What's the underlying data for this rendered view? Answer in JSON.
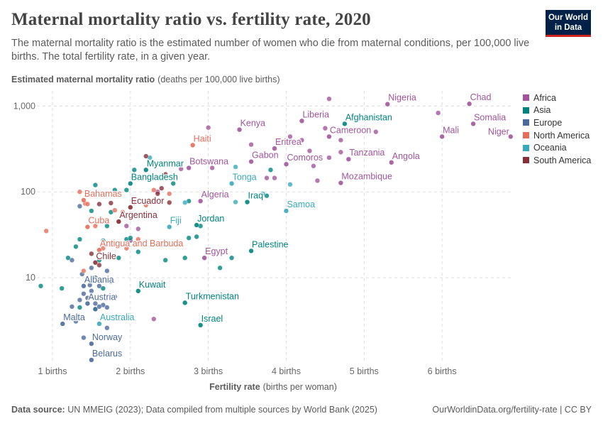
{
  "header": {
    "title": "Maternal mortality ratio vs. fertility rate, 2020",
    "subtitle": "The maternal mortality ratio is the estimated number of women who die from maternal conditions, per 100,000 live births. The total fertility rate, in a given year.",
    "logo_line1": "Our World",
    "logo_line2": "in Data"
  },
  "footer": {
    "source_label": "Data source:",
    "source_text": "UN MMEIG (2023); Data compiled from multiple sources by World Bank (2025)",
    "credit": "OurWorldinData.org/fertility-rate | CC BY"
  },
  "legend": [
    {
      "name": "Africa",
      "color": "#a2559c"
    },
    {
      "name": "Asia",
      "color": "#00847e"
    },
    {
      "name": "Europe",
      "color": "#4c6a9c"
    },
    {
      "name": "North America",
      "color": "#e56e5a"
    },
    {
      "name": "Oceania",
      "color": "#38aaba"
    },
    {
      "name": "South America",
      "color": "#883039"
    }
  ],
  "chart_data": {
    "type": "scatter",
    "title": "Maternal mortality ratio vs. fertility rate, 2020",
    "ylabel_bold": "Estimated maternal mortality ratio",
    "ylabel_rest": "(deaths per 100,000 live births)",
    "xlabel_bold": "Fertility rate",
    "xlabel_rest": "(births per woman)",
    "xlim": [
      0.8,
      6.9
    ],
    "ylim": [
      1.0,
      1500
    ],
    "y_scale": "log",
    "x_ticks": [
      {
        "v": 1,
        "label": "1 births"
      },
      {
        "v": 2,
        "label": "2 births"
      },
      {
        "v": 3,
        "label": "3 births"
      },
      {
        "v": 4,
        "label": "4 births"
      },
      {
        "v": 5,
        "label": "5 births"
      },
      {
        "v": 6,
        "label": "6 births"
      }
    ],
    "y_ticks": [
      {
        "v": 10,
        "label": "10"
      },
      {
        "v": 100,
        "label": "100"
      },
      {
        "v": 1000,
        "label": "1,000"
      }
    ],
    "labeled_points": [
      {
        "name": "Nigeria",
        "region": "Africa",
        "x": 5.3,
        "y": 1050
      },
      {
        "name": "Chad",
        "region": "Africa",
        "x": 6.35,
        "y": 1060
      },
      {
        "name": "Somalia",
        "region": "Africa",
        "x": 6.4,
        "y": 620
      },
      {
        "name": "Mali",
        "region": "Africa",
        "x": 6.0,
        "y": 440
      },
      {
        "name": "Niger",
        "region": "Africa",
        "x": 6.88,
        "y": 440
      },
      {
        "name": "Liberia",
        "region": "Africa",
        "x": 4.2,
        "y": 670
      },
      {
        "name": "Kenya",
        "region": "Africa",
        "x": 3.4,
        "y": 530
      },
      {
        "name": "Afghanistan",
        "region": "Asia",
        "x": 4.75,
        "y": 620
      },
      {
        "name": "Cameroon",
        "region": "Africa",
        "x": 4.55,
        "y": 440
      },
      {
        "name": "Eritrea",
        "region": "Africa",
        "x": 3.85,
        "y": 320
      },
      {
        "name": "Gabon",
        "region": "Africa",
        "x": 3.55,
        "y": 225
      },
      {
        "name": "Comoros",
        "region": "Africa",
        "x": 4.0,
        "y": 210
      },
      {
        "name": "Tanzania",
        "region": "Africa",
        "x": 4.8,
        "y": 240
      },
      {
        "name": "Angola",
        "region": "Africa",
        "x": 5.35,
        "y": 220
      },
      {
        "name": "Botswana",
        "region": "Africa",
        "x": 2.75,
        "y": 190
      },
      {
        "name": "Haiti",
        "region": "North America",
        "x": 2.8,
        "y": 350
      },
      {
        "name": "Myanmar",
        "region": "Asia",
        "x": 2.2,
        "y": 180
      },
      {
        "name": "Bangladesh",
        "region": "Asia",
        "x": 2.0,
        "y": 125
      },
      {
        "name": "Tonga",
        "region": "Oceania",
        "x": 3.3,
        "y": 125
      },
      {
        "name": "Mozambique",
        "region": "Africa",
        "x": 4.7,
        "y": 127
      },
      {
        "name": "Bahamas",
        "region": "North America",
        "x": 1.4,
        "y": 80
      },
      {
        "name": "Ecuador",
        "region": "South America",
        "x": 2.0,
        "y": 66
      },
      {
        "name": "Algeria",
        "region": "Africa",
        "x": 2.9,
        "y": 78
      },
      {
        "name": "Iraq",
        "region": "Asia",
        "x": 3.5,
        "y": 76
      },
      {
        "name": "Samoa",
        "region": "Oceania",
        "x": 4.0,
        "y": 60
      },
      {
        "name": "Argentina",
        "region": "South America",
        "x": 1.85,
        "y": 45
      },
      {
        "name": "Fiji",
        "region": "Oceania",
        "x": 2.5,
        "y": 39
      },
      {
        "name": "Jordan",
        "region": "Asia",
        "x": 2.85,
        "y": 41
      },
      {
        "name": "Cuba",
        "region": "North America",
        "x": 1.45,
        "y": 39
      },
      {
        "name": "Antigua and Barbuda",
        "region": "North America",
        "x": 1.6,
        "y": 21
      },
      {
        "name": "Palestine",
        "region": "Asia",
        "x": 3.55,
        "y": 20.5
      },
      {
        "name": "Chile",
        "region": "South America",
        "x": 1.55,
        "y": 15
      },
      {
        "name": "Egypt",
        "region": "Africa",
        "x": 2.95,
        "y": 17
      },
      {
        "name": "Albania",
        "region": "Europe",
        "x": 1.4,
        "y": 8
      },
      {
        "name": "Kuwait",
        "region": "Asia",
        "x": 2.1,
        "y": 7
      },
      {
        "name": "Austria",
        "region": "Europe",
        "x": 1.45,
        "y": 5
      },
      {
        "name": "Turkmenistan",
        "region": "Asia",
        "x": 2.7,
        "y": 5.1
      },
      {
        "name": "Australia",
        "region": "Oceania",
        "x": 1.6,
        "y": 2.9
      },
      {
        "name": "Malta",
        "region": "Europe",
        "x": 1.13,
        "y": 2.9
      },
      {
        "name": "Israel",
        "region": "Asia",
        "x": 2.9,
        "y": 2.8
      },
      {
        "name": "Norway",
        "region": "Europe",
        "x": 1.5,
        "y": 1.7
      },
      {
        "name": "Belarus",
        "region": "Europe",
        "x": 1.5,
        "y": 1.1
      }
    ],
    "other_points": [
      {
        "region": "Africa",
        "x": 4.55,
        "y": 1210
      },
      {
        "region": "Africa",
        "x": 5.95,
        "y": 830
      },
      {
        "region": "Africa",
        "x": 5.15,
        "y": 500
      },
      {
        "region": "Africa",
        "x": 3.55,
        "y": 355
      },
      {
        "region": "Africa",
        "x": 3.9,
        "y": 390
      },
      {
        "region": "Africa",
        "x": 4.05,
        "y": 440
      },
      {
        "region": "Africa",
        "x": 4.2,
        "y": 400
      },
      {
        "region": "Africa",
        "x": 4.5,
        "y": 550
      },
      {
        "region": "Africa",
        "x": 4.3,
        "y": 300
      },
      {
        "region": "Africa",
        "x": 4.55,
        "y": 250
      },
      {
        "region": "Africa",
        "x": 4.7,
        "y": 290
      },
      {
        "region": "Africa",
        "x": 4.35,
        "y": 200
      },
      {
        "region": "Africa",
        "x": 3.85,
        "y": 145
      },
      {
        "region": "Africa",
        "x": 4.4,
        "y": 135
      },
      {
        "region": "Africa",
        "x": 3.0,
        "y": 560
      },
      {
        "region": "Africa",
        "x": 3.05,
        "y": 190
      },
      {
        "region": "Africa",
        "x": 2.65,
        "y": 185
      },
      {
        "region": "Africa",
        "x": 2.35,
        "y": 100
      },
      {
        "region": "Africa",
        "x": 1.95,
        "y": 40
      },
      {
        "region": "Africa",
        "x": 2.0,
        "y": 27
      },
      {
        "region": "Africa",
        "x": 2.1,
        "y": 37
      },
      {
        "region": "Africa",
        "x": 2.3,
        "y": 3.3
      },
      {
        "region": "Africa",
        "x": 4.7,
        "y": 400
      },
      {
        "region": "Africa",
        "x": 3.75,
        "y": 145
      },
      {
        "region": "Asia",
        "x": 2.05,
        "y": 180
      },
      {
        "region": "Asia",
        "x": 2.1,
        "y": 150
      },
      {
        "region": "Asia",
        "x": 1.95,
        "y": 105
      },
      {
        "region": "Asia",
        "x": 1.8,
        "y": 105
      },
      {
        "region": "Asia",
        "x": 2.55,
        "y": 125
      },
      {
        "region": "Asia",
        "x": 1.55,
        "y": 120
      },
      {
        "region": "Asia",
        "x": 3.8,
        "y": 180
      },
      {
        "region": "Asia",
        "x": 3.75,
        "y": 90
      },
      {
        "region": "Asia",
        "x": 2.75,
        "y": 78
      },
      {
        "region": "Asia",
        "x": 1.5,
        "y": 60
      },
      {
        "region": "Asia",
        "x": 1.75,
        "y": 58
      },
      {
        "region": "Asia",
        "x": 1.95,
        "y": 28
      },
      {
        "region": "Asia",
        "x": 2.0,
        "y": 29
      },
      {
        "region": "Asia",
        "x": 1.35,
        "y": 28
      },
      {
        "region": "Asia",
        "x": 1.3,
        "y": 23
      },
      {
        "region": "Asia",
        "x": 1.2,
        "y": 17
      },
      {
        "region": "Asia",
        "x": 2.75,
        "y": 29
      },
      {
        "region": "Asia",
        "x": 2.85,
        "y": 30
      },
      {
        "region": "Asia",
        "x": 2.9,
        "y": 40
      },
      {
        "region": "Asia",
        "x": 3.3,
        "y": 17
      },
      {
        "region": "Asia",
        "x": 3.15,
        "y": 13
      },
      {
        "region": "Asia",
        "x": 2.7,
        "y": 17
      },
      {
        "region": "Asia",
        "x": 2.45,
        "y": 16
      },
      {
        "region": "Asia",
        "x": 2.1,
        "y": 20
      },
      {
        "region": "Asia",
        "x": 1.85,
        "y": 17
      },
      {
        "region": "Asia",
        "x": 1.6,
        "y": 16
      },
      {
        "region": "Asia",
        "x": 1.65,
        "y": 27
      },
      {
        "region": "Asia",
        "x": 1.7,
        "y": 40
      },
      {
        "region": "Asia",
        "x": 0.85,
        "y": 8
      },
      {
        "region": "Asia",
        "x": 1.12,
        "y": 7.5
      },
      {
        "region": "Asia",
        "x": 1.35,
        "y": 4.5
      },
      {
        "region": "Asia",
        "x": 1.55,
        "y": 4.3
      },
      {
        "region": "Asia",
        "x": 1.65,
        "y": 7.5
      },
      {
        "region": "Europe",
        "x": 1.35,
        "y": 68
      },
      {
        "region": "Europe",
        "x": 1.5,
        "y": 13
      },
      {
        "region": "Europe",
        "x": 1.7,
        "y": 12
      },
      {
        "region": "Europe",
        "x": 1.25,
        "y": 16
      },
      {
        "region": "Europe",
        "x": 1.55,
        "y": 10
      },
      {
        "region": "Europe",
        "x": 1.75,
        "y": 9
      },
      {
        "region": "Europe",
        "x": 1.6,
        "y": 8
      },
      {
        "region": "Europe",
        "x": 1.4,
        "y": 6.5
      },
      {
        "region": "Europe",
        "x": 1.5,
        "y": 7
      },
      {
        "region": "Europe",
        "x": 1.35,
        "y": 5.5
      },
      {
        "region": "Europe",
        "x": 1.55,
        "y": 5
      },
      {
        "region": "Europe",
        "x": 1.65,
        "y": 4.8
      },
      {
        "region": "Europe",
        "x": 1.7,
        "y": 4.5
      },
      {
        "region": "Europe",
        "x": 1.25,
        "y": 4.6
      },
      {
        "region": "Europe",
        "x": 1.55,
        "y": 4.3
      },
      {
        "region": "Europe",
        "x": 1.6,
        "y": 4.6
      },
      {
        "region": "Europe",
        "x": 1.45,
        "y": 5.8
      },
      {
        "region": "Europe",
        "x": 1.8,
        "y": 6
      },
      {
        "region": "Europe",
        "x": 1.4,
        "y": 2
      },
      {
        "region": "Europe",
        "x": 1.7,
        "y": 2.6
      },
      {
        "region": "Europe",
        "x": 1.3,
        "y": 3.1
      },
      {
        "region": "Europe",
        "x": 1.48,
        "y": 8.2
      },
      {
        "region": "Europe",
        "x": 1.38,
        "y": 11
      },
      {
        "region": "North America",
        "x": 0.92,
        "y": 35
      },
      {
        "region": "North America",
        "x": 1.42,
        "y": 73
      },
      {
        "region": "North America",
        "x": 1.45,
        "y": 72
      },
      {
        "region": "North America",
        "x": 1.8,
        "y": 61
      },
      {
        "region": "North America",
        "x": 1.9,
        "y": 58
      },
      {
        "region": "North America",
        "x": 2.3,
        "y": 105
      },
      {
        "region": "North America",
        "x": 2.5,
        "y": 95
      },
      {
        "region": "North America",
        "x": 2.2,
        "y": 70
      },
      {
        "region": "North America",
        "x": 1.85,
        "y": 45
      },
      {
        "region": "North America",
        "x": 1.55,
        "y": 40
      },
      {
        "region": "North America",
        "x": 1.95,
        "y": 22
      },
      {
        "region": "North America",
        "x": 1.35,
        "y": 100
      },
      {
        "region": "North America",
        "x": 1.65,
        "y": 22
      },
      {
        "region": "North America",
        "x": 1.4,
        "y": 12
      },
      {
        "region": "North America",
        "x": 2.1,
        "y": 28
      },
      {
        "region": "Oceania",
        "x": 2.25,
        "y": 250
      },
      {
        "region": "Oceania",
        "x": 2.7,
        "y": 75
      },
      {
        "region": "Oceania",
        "x": 3.35,
        "y": 76
      },
      {
        "region": "Oceania",
        "x": 3.7,
        "y": 95
      },
      {
        "region": "Oceania",
        "x": 4.05,
        "y": 122
      },
      {
        "region": "Oceania",
        "x": 3.35,
        "y": 195
      },
      {
        "region": "South America",
        "x": 2.2,
        "y": 260
      },
      {
        "region": "South America",
        "x": 2.45,
        "y": 160
      },
      {
        "region": "South America",
        "x": 2.35,
        "y": 95
      },
      {
        "region": "South America",
        "x": 2.5,
        "y": 75
      },
      {
        "region": "South America",
        "x": 2.05,
        "y": 75
      },
      {
        "region": "South America",
        "x": 1.75,
        "y": 74
      },
      {
        "region": "South America",
        "x": 1.6,
        "y": 72
      },
      {
        "region": "South America",
        "x": 1.5,
        "y": 19
      },
      {
        "region": "South America",
        "x": 1.6,
        "y": 14
      },
      {
        "region": "South America",
        "x": 2.4,
        "y": 110
      }
    ]
  }
}
